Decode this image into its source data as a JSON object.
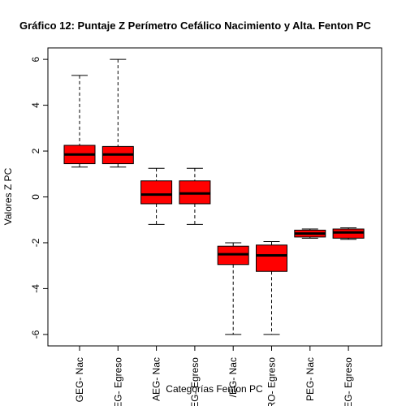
{
  "chart_data": {
    "type": "boxplot",
    "title": "Gráfico 12: Puntaje Z Perímetro Cefálico Nacimiento y Alta. Fenton PC",
    "xlabel": "Categorías Fenton PC",
    "ylabel": "Valores Z PC",
    "ylim": [
      -6.5,
      6.5
    ],
    "yticks": [
      "6",
      "4",
      "2",
      "0",
      "-2",
      "-4",
      "-6"
    ],
    "ytick_values": [
      6,
      4,
      2,
      0,
      -2,
      -4,
      -6
    ],
    "grid": false,
    "box_color": "#ff0000",
    "categories": [
      "GEG- Nac",
      "EG- Egreso",
      "AEG- Nac",
      "EG- Egreso",
      "/EG- Nac",
      "RO- Egreso",
      "PEG- Nac",
      "EG- Egreso"
    ],
    "boxes": [
      {
        "min": 1.3,
        "q1": 1.45,
        "median": 1.85,
        "q3": 2.25,
        "max": 5.3
      },
      {
        "min": 1.3,
        "q1": 1.45,
        "median": 1.85,
        "q3": 2.2,
        "max": 6.0
      },
      {
        "min": -1.2,
        "q1": -0.3,
        "median": 0.1,
        "q3": 0.7,
        "max": 1.25
      },
      {
        "min": -1.2,
        "q1": -0.3,
        "median": 0.15,
        "q3": 0.7,
        "max": 1.25
      },
      {
        "min": -6.0,
        "q1": -2.95,
        "median": -2.5,
        "q3": -2.15,
        "max": -2.0
      },
      {
        "min": -6.0,
        "q1": -3.25,
        "median": -2.55,
        "q3": -2.1,
        "max": -1.95
      },
      {
        "min": -1.8,
        "q1": -1.75,
        "median": -1.6,
        "q3": -1.45,
        "max": -1.4
      },
      {
        "min": -1.85,
        "q1": -1.8,
        "median": -1.55,
        "q3": -1.4,
        "max": -1.35
      }
    ]
  }
}
